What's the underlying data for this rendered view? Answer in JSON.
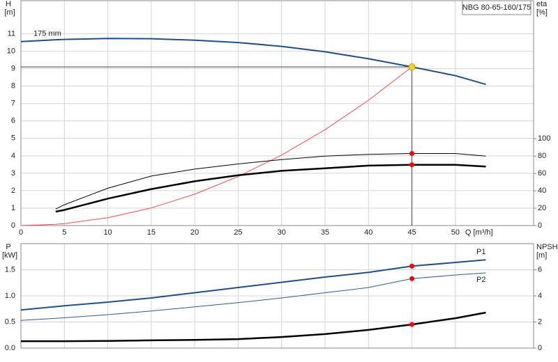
{
  "chart_data": [
    {
      "type": "line",
      "title": "NBG 80-65-160/175",
      "ylabel": "H",
      "yunit": "[m]",
      "y2label": "eta",
      "y2unit": "[%]",
      "xlabel": "Q [m³/h]",
      "xlim": [
        0,
        59
      ],
      "xticks": [
        0,
        5,
        10,
        15,
        20,
        25,
        30,
        35,
        40,
        45,
        50
      ],
      "ylim": [
        0,
        12.9
      ],
      "yticks": [
        0,
        1,
        2,
        3,
        4,
        5,
        6,
        7,
        8,
        9,
        10,
        11
      ],
      "y2lim": [
        0,
        259
      ],
      "y2ticks": [
        0,
        20,
        40,
        60,
        80,
        100
      ],
      "grid": true,
      "x": [
        0,
        4,
        5,
        10,
        15,
        20,
        25,
        30,
        35,
        40,
        45,
        50,
        53.5
      ],
      "series": [
        {
          "name": "175 mm",
          "label_at": "start",
          "label_side": "above",
          "color": "#1f4e8c",
          "width": 2,
          "values": [
            10.55,
            10.66,
            10.68,
            10.73,
            10.72,
            10.63,
            10.5,
            10.28,
            9.97,
            9.57,
            9.1,
            8.6,
            8.1
          ]
        },
        {
          "color": "#ff4a4a",
          "width": 1,
          "values": [
            0,
            0.07,
            0.11,
            0.45,
            1.01,
            1.8,
            2.81,
            4.04,
            5.5,
            7.19,
            9.1,
            null,
            null
          ]
        },
        {
          "color": "#000000",
          "width": 1,
          "axis": "y2",
          "values": [
            null,
            19,
            24,
            43,
            57,
            65,
            71,
            76,
            80,
            82,
            83,
            83,
            80
          ]
        },
        {
          "color": "#000000",
          "width": 2.5,
          "axis": "y2",
          "values": [
            null,
            16,
            18,
            31,
            42,
            51,
            58,
            63,
            66,
            69,
            70,
            70,
            68
          ]
        }
      ],
      "markers": [
        {
          "x": 45,
          "y": 9.1,
          "color": "#ffd21f",
          "guides": true
        },
        {
          "x": 45,
          "y": 83,
          "axis": "y2",
          "color": "#ff0000"
        },
        {
          "x": 45,
          "y": 70,
          "axis": "y2",
          "color": "#ff0000"
        }
      ]
    },
    {
      "type": "line",
      "ylabel": "P",
      "yunit": "[kW]",
      "y2label": "NPSH",
      "y2unit": "[m]",
      "xlim": [
        0,
        59
      ],
      "xticks": [
        0,
        5,
        10,
        15,
        20,
        25,
        30,
        35,
        40,
        45,
        50
      ],
      "xtick_labels": false,
      "ylim": [
        0,
        2
      ],
      "yticks": [
        {
          "value": 0,
          "label": "0.0"
        },
        0.5,
        {
          "value": 1,
          "label": "1.0"
        },
        1.5
      ],
      "y2lim": [
        0,
        8
      ],
      "y2ticks": [
        0,
        2,
        4,
        6
      ],
      "grid": true,
      "x": [
        0,
        5,
        10,
        15,
        20,
        25,
        30,
        35,
        40,
        45,
        50,
        53.5
      ],
      "series": [
        {
          "name": "P1",
          "label_at": "end",
          "label_side": "above",
          "color": "#1f4e8c",
          "width": 2,
          "values": [
            0.73,
            0.81,
            0.88,
            0.96,
            1.06,
            1.16,
            1.26,
            1.36,
            1.45,
            1.57,
            1.64,
            1.69
          ]
        },
        {
          "name": "P2",
          "label_at": "end",
          "label_side": "below",
          "color": "#2a5a9a",
          "width": 1,
          "values": [
            0.53,
            0.58,
            0.64,
            0.71,
            0.79,
            0.87,
            0.96,
            1.06,
            1.16,
            1.33,
            1.4,
            1.44
          ]
        },
        {
          "color": "#000000",
          "width": 2.5,
          "axis": "y2",
          "values": [
            0.53,
            0.53,
            0.55,
            0.59,
            0.63,
            0.69,
            0.85,
            1.07,
            1.39,
            1.81,
            2.29,
            2.72
          ]
        }
      ],
      "markers": [
        {
          "x": 45,
          "y": 1.57,
          "color": "#ff0000"
        },
        {
          "x": 45,
          "y": 1.33,
          "color": "#ff0000"
        },
        {
          "x": 45,
          "y": 1.81,
          "axis": "y2",
          "color": "#ff0000"
        }
      ]
    }
  ]
}
